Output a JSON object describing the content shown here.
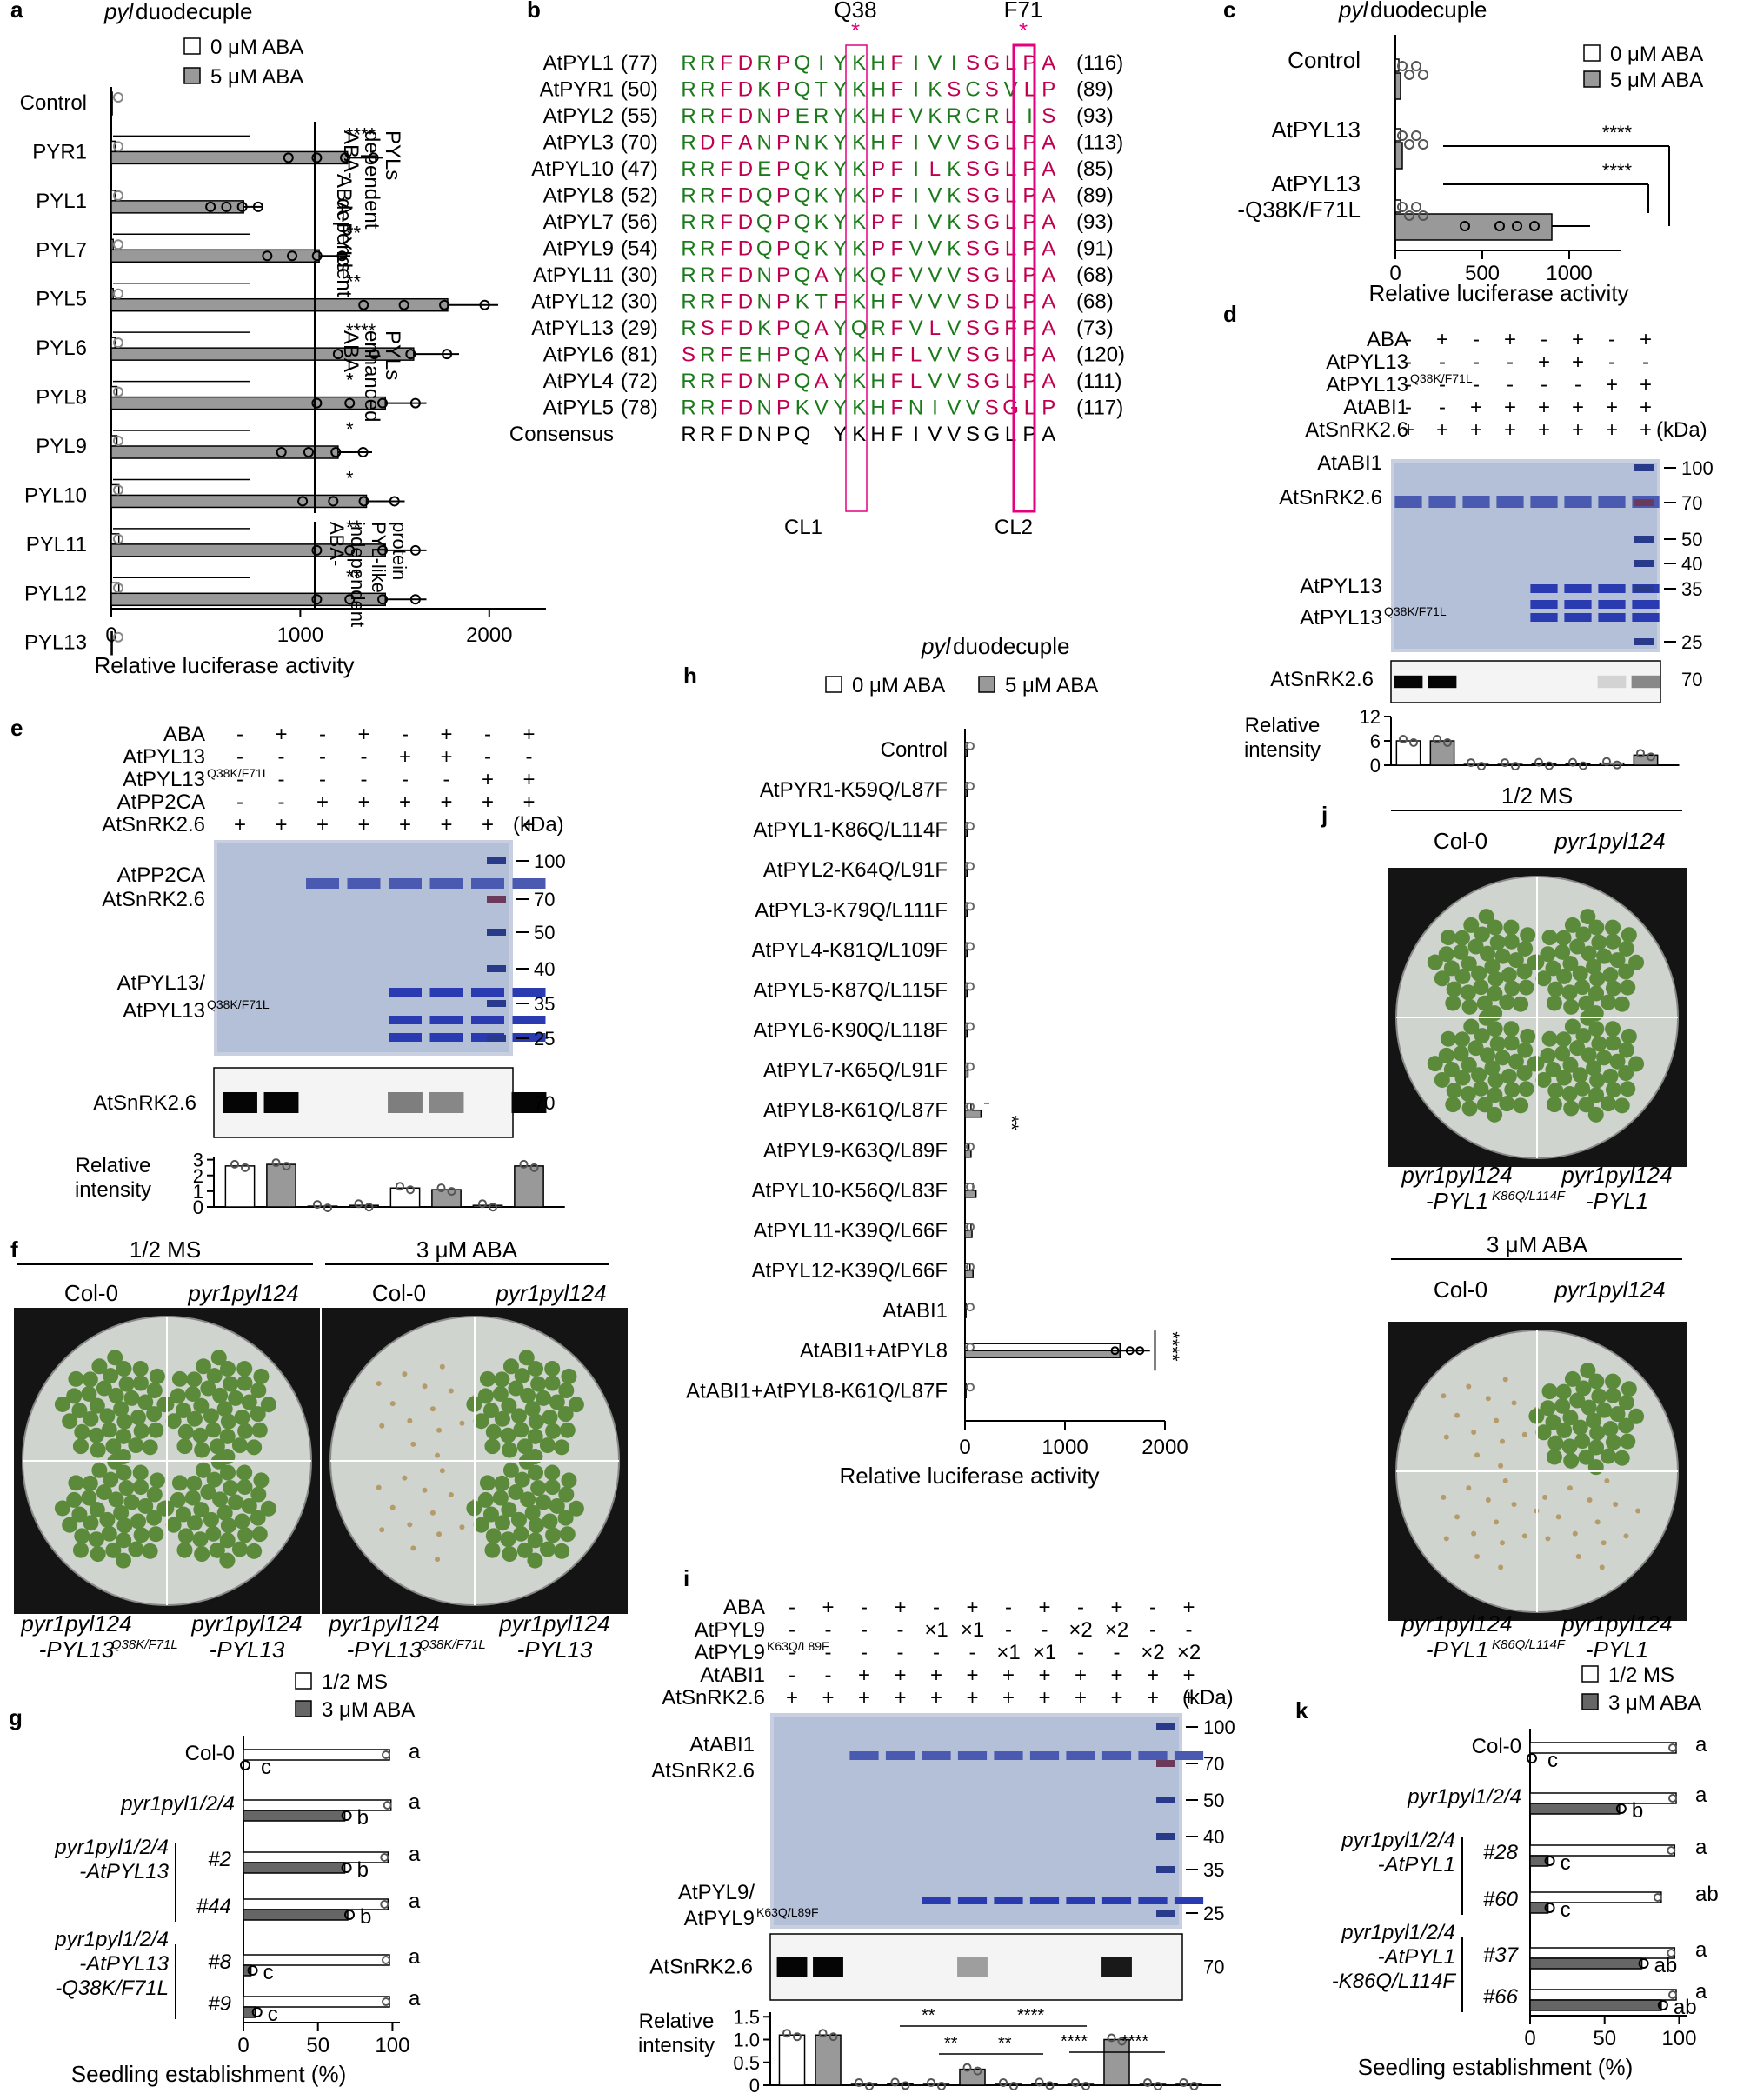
{
  "panels": {
    "a": {
      "letter": "a",
      "title_italic": "pyl",
      "title_rest": " duodecuple",
      "legend": [
        "0 μM ABA",
        "5 μM ABA"
      ],
      "xlabel": "Relative luciferase activity",
      "xticks": [
        "0",
        "1000",
        "2000"
      ],
      "groups": [
        {
          "label": "ABA-\ndependent\nPYLs"
        },
        {
          "label": "ABA-\nenhanced\nPYLs"
        },
        {
          "label": "ABA-\nindependent\nPYL-like\nprotein"
        }
      ]
    },
    "b": {
      "letter": "b",
      "top_labels": [
        "Q38",
        "F71"
      ],
      "star": "*",
      "bottom_labels": [
        "CL1",
        "CL2"
      ],
      "rows": [
        {
          "name": "AtPYL1",
          "start": "(77)",
          "seq": "RRFDRPQIYKHFIVISGLPA",
          "end": "(116)"
        },
        {
          "name": "AtPYR1",
          "start": "(50)",
          "seq": "RRFDKPQTYKHFIKSCSVLPA",
          "end": "(89)"
        },
        {
          "name": "AtPYL2",
          "start": "(55)",
          "seq": "RRFDNPERYKHFVKRCRLISGLPA",
          "end": "(93)"
        },
        {
          "name": "AtPYL3",
          "start": "(70)",
          "seq": "RDFANPNKYKHFIVVSGLPA",
          "end": "(113)"
        },
        {
          "name": "AtPYL10",
          "start": "(47)",
          "seq": "RRFDEPQKYKPFILKSGLPA",
          "end": "(85)"
        },
        {
          "name": "AtPYL8",
          "start": "(52)",
          "seq": "RRFDQPQKYKPFIVKSGLPA",
          "end": "(89)"
        },
        {
          "name": "AtPYL7",
          "start": "(56)",
          "seq": "RRFDQPQKYKPFIVKSGLPA",
          "end": "(93)"
        },
        {
          "name": "AtPYL9",
          "start": "(54)",
          "seq": "RRFDQPQKYKPFVVKSGLPA",
          "end": "(91)"
        },
        {
          "name": "AtPYL11",
          "start": "(30)",
          "seq": "RRFDNPQAYKQFVVVSGLPA",
          "end": "(68)"
        },
        {
          "name": "AtPYL12",
          "start": "(30)",
          "seq": "RRFDNPKTFKHFVVVSDLPA",
          "end": "(68)"
        },
        {
          "name": "AtPYL13",
          "start": "(29)",
          "seq": "RSFDKPQAYQRFVLVSGFPA",
          "end": "(73)"
        },
        {
          "name": "AtPYL6",
          "start": "(81)",
          "seq": "SRFEHPQAYKHFLVVSGLPA",
          "end": "(120)"
        },
        {
          "name": "AtPYL4",
          "start": "(72)",
          "seq": "RRFDNPQAYKHFLVVSGLPA",
          "end": "(111)"
        },
        {
          "name": "AtPYL5",
          "start": "(78)",
          "seq": "RRFDNPKVYKHFNIVVSGLPA",
          "end": "(117)"
        },
        {
          "name": "Consensus",
          "start": "",
          "seq": "RRFDNPQ YKHFIVVSGLPA",
          "end": ""
        }
      ]
    },
    "c": {
      "letter": "c",
      "title_italic": "pyl",
      "title_rest": " duodecuple",
      "legend": [
        "0 μM ABA",
        "5 μM ABA"
      ],
      "xlabel": "Relative luciferase activity",
      "xticks": [
        "0",
        "500",
        "1000"
      ],
      "sig": [
        "****",
        "****"
      ]
    },
    "d": {
      "letter": "d",
      "rows": [
        {
          "label": "ABA",
          "marks": [
            "-",
            "+",
            "-",
            "+",
            "-",
            "+",
            "-",
            "+"
          ]
        },
        {
          "label": "AtPYL13",
          "marks": [
            "-",
            "-",
            "-",
            "-",
            "+",
            "+",
            "-",
            "-"
          ]
        },
        {
          "label": "AtPYL13",
          "sup": "Q38K/F71L",
          "marks": [
            "-",
            "-",
            "-",
            "-",
            "-",
            "-",
            "+",
            "+"
          ]
        },
        {
          "label": "AtABI1",
          "marks": [
            "-",
            "-",
            "+",
            "+",
            "+",
            "+",
            "+",
            "+"
          ]
        },
        {
          "label": "AtSnRK2.6",
          "marks": [
            "+",
            "+",
            "+",
            "+",
            "+",
            "+",
            "+",
            "+"
          ]
        }
      ],
      "kda_label": "(kDa)",
      "ladder": [
        "100",
        "70",
        "50",
        "40",
        "35",
        "25"
      ],
      "band_labels": [
        "AtABI1",
        "AtSnRK2.6",
        "AtPYL13",
        "AtPYL13"
      ],
      "band_sup": "Q38K/F71L",
      "blot_label": "AtSnRK2.6",
      "blot_kda": "70",
      "intensity_label": "Relative\nintensity",
      "yticks": [
        "0",
        "6",
        "12"
      ]
    },
    "e": {
      "letter": "e",
      "rows": [
        {
          "label": "ABA",
          "marks": [
            "-",
            "+",
            "-",
            "+",
            "-",
            "+",
            "-",
            "+"
          ]
        },
        {
          "label": "AtPYL13",
          "marks": [
            "-",
            "-",
            "-",
            "-",
            "+",
            "+",
            "-",
            "-"
          ]
        },
        {
          "label": "AtPYL13",
          "sup": "Q38K/F71L",
          "marks": [
            "-",
            "-",
            "-",
            "-",
            "-",
            "-",
            "+",
            "+"
          ]
        },
        {
          "label": "AtPP2CA",
          "marks": [
            "-",
            "-",
            "+",
            "+",
            "+",
            "+",
            "+",
            "+"
          ]
        },
        {
          "label": "AtSnRK2.6",
          "marks": [
            "+",
            "+",
            "+",
            "+",
            "+",
            "+",
            "+",
            "+"
          ]
        }
      ],
      "kda_label": "(kDa)",
      "ladder": [
        "100",
        "70",
        "50",
        "40",
        "35",
        "25"
      ],
      "band_labels": [
        "AtPP2CA",
        "AtSnRK2.6",
        "AtPYL13/",
        "AtPYL13"
      ],
      "band_sup": "Q38K/F71L",
      "blot_label": "AtSnRK2.6",
      "blot_kda": "70",
      "intensity_label": "Relative\nintensity",
      "yticks": [
        "0",
        "1",
        "2",
        "3"
      ]
    },
    "f": {
      "letter": "f",
      "conditions": [
        "1/2 MS",
        "3 μM ABA"
      ],
      "top_labels": [
        "Col-0",
        "pyr1pyl124"
      ],
      "bottom_labels": [
        {
          "main": "pyr1pyl124",
          "second": "-PYL13",
          "sup": "Q38K/F71L"
        },
        {
          "main": "pyr1pyl124",
          "second": "-PYL13",
          "sup": ""
        }
      ]
    },
    "g": {
      "letter": "g",
      "legend": [
        "1/2  MS",
        "3 μM ABA"
      ],
      "xlabel": "Seedling establishment (%)",
      "xticks": [
        "0",
        "50",
        "100"
      ],
      "row_labels": [
        {
          "line": "Col-0"
        },
        {
          "line": "pyr1pyl1/2/4"
        },
        {
          "line": "pyr1pyl1/2/4\n-AtPYL13",
          "subs": [
            "#2",
            "#44"
          ]
        },
        {
          "line": "pyr1pyl1/2/4\n-AtPYL13\n-Q38K/F71L",
          "subs": [
            "#8",
            "#9"
          ]
        }
      ]
    },
    "h": {
      "letter": "h",
      "title_italic": "pyl",
      "title_rest": " duodecuple",
      "legend": [
        "0 μM ABA",
        "5 μM ABA"
      ],
      "xlabel": "Relative luciferase activity",
      "xticks": [
        "0",
        "1000",
        "2000"
      ],
      "sig": [
        "**",
        "****"
      ]
    },
    "i": {
      "letter": "i",
      "rows": [
        {
          "label": "ABA",
          "marks": [
            "-",
            "+",
            "-",
            "+",
            "-",
            "+",
            "-",
            "+",
            "-",
            "+",
            "-",
            "+"
          ]
        },
        {
          "label": "AtPYL9",
          "marks": [
            "-",
            "-",
            "-",
            "-",
            "×1",
            "×1",
            "-",
            "-",
            "×2",
            "×2",
            "-",
            "-"
          ]
        },
        {
          "label": "AtPYL9",
          "sup": "K63Q/L89F",
          "marks": [
            "-",
            "-",
            "-",
            "-",
            "-",
            "-",
            "×1",
            "×1",
            "-",
            "-",
            "×2",
            "×2"
          ]
        },
        {
          "label": "AtABI1",
          "marks": [
            "-",
            "-",
            "+",
            "+",
            "+",
            "+",
            "+",
            "+",
            "+",
            "+",
            "+",
            "+"
          ]
        },
        {
          "label": "AtSnRK2.6",
          "marks": [
            "+",
            "+",
            "+",
            "+",
            "+",
            "+",
            "+",
            "+",
            "+",
            "+",
            "+",
            "+"
          ]
        }
      ],
      "kda_label": "(kDa)",
      "ladder": [
        "100",
        "70",
        "50",
        "40",
        "35",
        "25"
      ],
      "band_labels": [
        "AtABI1",
        "AtSnRK2.6",
        "AtPYL9/",
        "AtPYL9"
      ],
      "band_sup": "K63Q/L89F",
      "blot_label": "AtSnRK2.6",
      "blot_kda": "70",
      "intensity_label": "Relative\nintensity",
      "yticks": [
        "0",
        "0.5",
        "1.0",
        "1.5"
      ],
      "sig": [
        "**",
        "**",
        "**",
        "****",
        "****",
        "****"
      ]
    },
    "j": {
      "letter": "j",
      "conditions": [
        "1/2 MS",
        "3 μM ABA"
      ],
      "top_labels": [
        "Col-0",
        "pyr1pyl124"
      ],
      "bottom_labels": [
        {
          "main": "pyr1pyl124",
          "second": "-PYL1",
          "sup": "K86Q/L114F"
        },
        {
          "main": "pyr1pyl124",
          "second": "-PYL1",
          "sup": ""
        }
      ]
    },
    "k": {
      "letter": "k",
      "legend": [
        "1/2  MS",
        "3 μM ABA"
      ],
      "xlabel": "Seedling establishment (%)",
      "xticks": [
        "0",
        "50",
        "100"
      ],
      "row_labels": [
        {
          "line": "Col-0"
        },
        {
          "line": "pyr1pyl1/2/4"
        },
        {
          "line": "pyr1pyl1/2/4\n-AtPYL1",
          "subs": [
            "#28",
            "#60"
          ]
        },
        {
          "line": "pyr1pyl1/2/4\n-AtPYL1\n-K86Q/L114F",
          "subs": [
            "#37",
            "#66"
          ]
        }
      ]
    }
  },
  "chart_data": [
    {
      "panel": "a",
      "type": "bar",
      "orientation": "horizontal",
      "categories": [
        "Control",
        "PYR1",
        "PYL1",
        "PYL7",
        "PYL5",
        "PYL6",
        "PYL8",
        "PYL9",
        "PYL10",
        "PYL11",
        "PYL12",
        "PYL13"
      ],
      "series": [
        {
          "name": "0 μM ABA",
          "values": [
            5,
            20,
            20,
            10,
            10,
            20,
            30,
            30,
            40,
            40,
            40,
            5
          ]
        },
        {
          "name": "5 μM ABA",
          "values": [
            5,
            1250,
            700,
            1100,
            1780,
            1600,
            1450,
            1200,
            1350,
            1450,
            1450,
            5
          ]
        }
      ],
      "xlim": [
        0,
        2300
      ],
      "significance": [
        {
          "category": "PYR1",
          "label": "****"
        },
        {
          "category": "PYL7",
          "label": "**"
        },
        {
          "category": "PYL5",
          "label": "**"
        },
        {
          "category": "PYL6",
          "label": "****"
        },
        {
          "category": "PYL8",
          "label": "*"
        },
        {
          "category": "PYL9",
          "label": "*"
        },
        {
          "category": "PYL10",
          "label": "*"
        },
        {
          "category": "PYL11",
          "label": "**"
        },
        {
          "category": "PYL12",
          "label": "**"
        }
      ]
    },
    {
      "panel": "c",
      "type": "bar",
      "orientation": "horizontal",
      "categories": [
        "Control",
        "AtPYL13",
        "AtPYL13\n-Q38K/F71L"
      ],
      "series": [
        {
          "name": "0 μM ABA",
          "values": [
            20,
            30,
            30
          ]
        },
        {
          "name": "5 μM ABA",
          "values": [
            30,
            40,
            900
          ]
        }
      ],
      "xlim": [
        0,
        1300
      ]
    },
    {
      "panel": "d",
      "type": "bar",
      "categories": [
        "1",
        "2",
        "3",
        "4",
        "5",
        "6",
        "7",
        "8"
      ],
      "values": [
        6,
        6,
        0.2,
        0.2,
        0.3,
        0.3,
        0.5,
        2.5
      ],
      "ylim": [
        0,
        12
      ]
    },
    {
      "panel": "e",
      "type": "bar",
      "categories": [
        "1",
        "2",
        "3",
        "4",
        "5",
        "6",
        "7",
        "8"
      ],
      "values": [
        2.6,
        2.7,
        0.05,
        0.1,
        1.2,
        1.1,
        0.1,
        2.6
      ],
      "ylim": [
        0,
        3.2
      ]
    },
    {
      "panel": "g",
      "type": "bar",
      "orientation": "horizontal",
      "categories": [
        "Col-0",
        "pyr1pyl1/2/4",
        "#2",
        "#44",
        "#8",
        "#9"
      ],
      "series": [
        {
          "name": "1/2  MS",
          "values": [
            98,
            99,
            97,
            97,
            98,
            98
          ]
        },
        {
          "name": "3 μM ABA",
          "values": [
            0,
            68,
            68,
            70,
            5,
            8
          ]
        }
      ],
      "letters": [
        [
          "a",
          "c"
        ],
        [
          "a",
          "b"
        ],
        [
          "a",
          "b"
        ],
        [
          "a",
          "b"
        ],
        [
          "a",
          "c"
        ],
        [
          "a",
          "c"
        ]
      ],
      "xlim": [
        0,
        105
      ]
    },
    {
      "panel": "h",
      "type": "bar",
      "orientation": "horizontal",
      "categories": [
        "Control",
        "AtPYR1-K59Q/L87F",
        "AtPYL1-K86Q/L114F",
        "AtPYL2-K64Q/L91F",
        "AtPYL3-K79Q/L111F",
        "AtPYL4-K81Q/L109F",
        "AtPYL5-K87Q/L115F",
        "AtPYL6-K90Q/L118F",
        "AtPYL7-K65Q/L91F",
        "AtPYL8-K61Q/L87F",
        "AtPYL9-K63Q/L89F",
        "AtPYL10-K56Q/L83F",
        "AtPYL11-K39Q/L66F",
        "AtPYL12-K39Q/L66F",
        "AtABI1",
        "AtABI1+AtPYL8",
        "AtABI1+AtPYL8-K61Q/L87F"
      ],
      "series": [
        {
          "name": "0 μM ABA",
          "values": [
            20,
            20,
            20,
            20,
            20,
            20,
            20,
            20,
            30,
            60,
            40,
            80,
            60,
            50,
            10,
            1550,
            10
          ]
        },
        {
          "name": "5 μM ABA",
          "values": [
            20,
            20,
            20,
            20,
            20,
            20,
            20,
            20,
            30,
            160,
            60,
            110,
            70,
            80,
            10,
            1550,
            10
          ]
        }
      ],
      "xlim": [
        0,
        2000
      ]
    },
    {
      "panel": "i",
      "type": "bar",
      "categories": [
        "1",
        "2",
        "3",
        "4",
        "5",
        "6",
        "7",
        "8",
        "9",
        "10",
        "11",
        "12"
      ],
      "values": [
        1.1,
        1.1,
        0.02,
        0.03,
        0.02,
        0.35,
        0.02,
        0.03,
        0.02,
        1.0,
        0.02,
        0.02
      ],
      "ylim": [
        0,
        1.6
      ]
    },
    {
      "panel": "k",
      "type": "bar",
      "orientation": "horizontal",
      "categories": [
        "Col-0",
        "pyr1pyl1/2/4",
        "#28",
        "#60",
        "#37",
        "#66"
      ],
      "series": [
        {
          "name": "1/2  MS",
          "values": [
            98,
            98,
            97,
            88,
            97,
            98
          ]
        },
        {
          "name": "3 μM ABA",
          "values": [
            0,
            60,
            12,
            12,
            75,
            88
          ]
        }
      ],
      "letters": [
        [
          "a",
          "c"
        ],
        [
          "a",
          "b"
        ],
        [
          "a",
          "c"
        ],
        [
          "ab",
          "c"
        ],
        [
          "a",
          "ab"
        ],
        [
          "a",
          "ab"
        ]
      ],
      "xlim": [
        0,
        105
      ]
    }
  ]
}
